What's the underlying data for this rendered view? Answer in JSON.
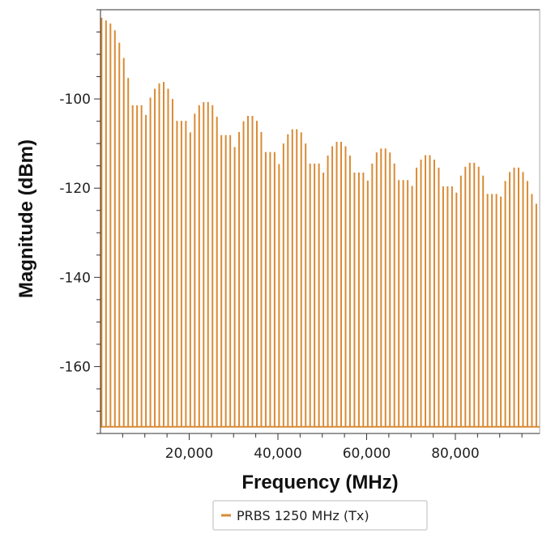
{
  "chart_data": {
    "type": "bar",
    "title": "",
    "xlabel": "Frequency (MHz)",
    "ylabel": "Magnitude (dBm)",
    "xlim": [
      0,
      99000
    ],
    "ylim": [
      -175,
      -80
    ],
    "baseline": -173.5,
    "xticks": [
      20000,
      40000,
      60000,
      80000
    ],
    "xtick_labels": [
      "20,000",
      "40,000",
      "60,000",
      "80,000"
    ],
    "yticks": [
      -100,
      -120,
      -140,
      -160
    ],
    "ytick_labels": [
      "-100",
      "-120",
      "-140",
      "-160"
    ],
    "grid": false,
    "legend": "bottom-center",
    "series": [
      {
        "name": "PRBS 1250 MHz (Tx)",
        "color": "#d98b35",
        "x": [
          250,
          1250,
          2250,
          3250,
          4250,
          5250,
          6250,
          7250,
          8250,
          9250,
          10250,
          11250,
          12250,
          13250,
          14250,
          15250,
          16250,
          17250,
          18250,
          19250,
          20250,
          21250,
          22250,
          23250,
          24250,
          25250,
          26250,
          27250,
          28250,
          29250,
          30250,
          31250,
          32250,
          33250,
          34250,
          35250,
          36250,
          37250,
          38250,
          39250,
          40250,
          41250,
          42250,
          43250,
          44250,
          45250,
          46250,
          47250,
          48250,
          49250,
          50250,
          51250,
          52250,
          53250,
          54250,
          55250,
          56250,
          57250,
          58250,
          59250,
          60250,
          61250,
          62250,
          63250,
          64250,
          65250,
          66250,
          67250,
          68250,
          69250,
          70250,
          71250,
          72250,
          73250,
          74250,
          75250,
          76250,
          77250,
          78250,
          79250,
          80250,
          81250,
          82250,
          83250,
          84250,
          85250,
          86250,
          87250,
          88250,
          89250,
          90250,
          91250,
          92250,
          93250,
          94250,
          95250,
          96250,
          97250,
          98250
        ],
        "values": [
          -81.8,
          -82.4,
          -83.1,
          -84.6,
          -87.4,
          -90.8,
          -95.3,
          -101.4,
          -101.4,
          -101.4,
          -103.6,
          -99.7,
          -97.7,
          -96.5,
          -96.2,
          -97.7,
          -100.0,
          -104.9,
          -104.9,
          -104.9,
          -107.5,
          -103.3,
          -101.4,
          -100.7,
          -100.7,
          -101.4,
          -104.0,
          -108.1,
          -108.1,
          -108.1,
          -110.8,
          -107.4,
          -105.0,
          -103.8,
          -103.8,
          -104.9,
          -107.4,
          -111.9,
          -111.9,
          -111.9,
          -114.6,
          -110.0,
          -107.9,
          -106.8,
          -106.8,
          -107.5,
          -110.0,
          -114.5,
          -114.5,
          -114.5,
          -116.5,
          -112.7,
          -110.6,
          -109.6,
          -109.6,
          -110.6,
          -112.7,
          -116.5,
          -116.5,
          -116.5,
          -118.3,
          -114.5,
          -112.0,
          -111.1,
          -111.1,
          -112.0,
          -114.5,
          -118.2,
          -118.2,
          -118.2,
          -119.5,
          -115.4,
          -113.6,
          -112.6,
          -112.6,
          -113.6,
          -115.4,
          -119.6,
          -119.6,
          -119.6,
          -121.0,
          -117.2,
          -115.2,
          -114.3,
          -114.3,
          -115.2,
          -117.2,
          -121.3,
          -121.3,
          -121.3,
          -121.9,
          -118.4,
          -116.4,
          -115.4,
          -115.4,
          -116.4,
          -118.4,
          -121.3,
          -123.5
        ]
      }
    ]
  }
}
